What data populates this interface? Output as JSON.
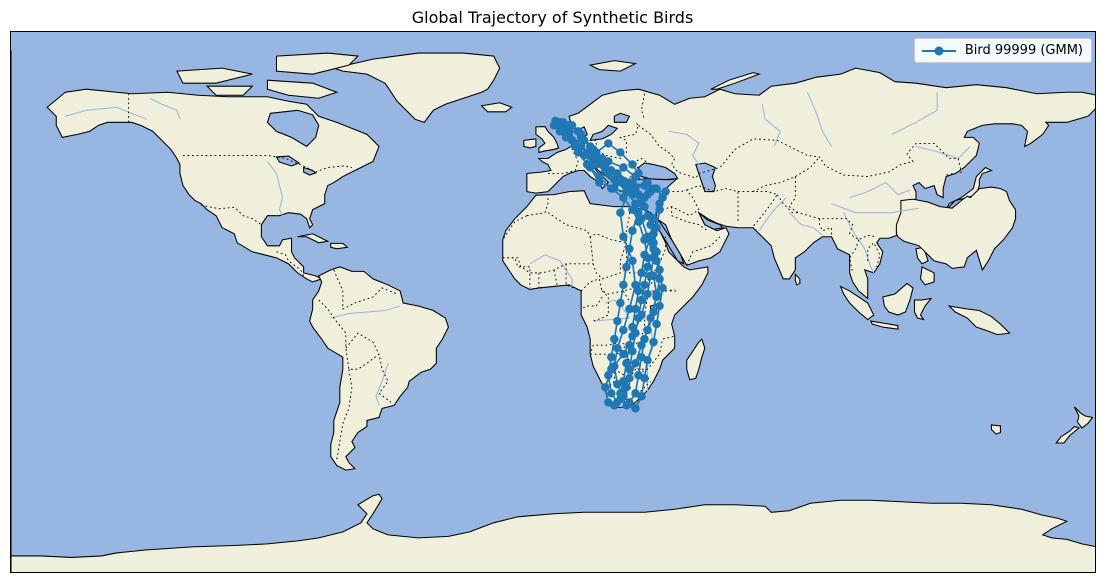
{
  "title": "Global Trajectory of Synthetic Birds",
  "legend": {
    "label": "Bird 99999 (GMM)"
  },
  "colors": {
    "ocean": "#97b6e1",
    "land": "#efefdb",
    "coastline": "#000000",
    "borders": "#000000",
    "rivers": "#97b6e1",
    "lakes": "#97b6e1",
    "track": "#1f77b4"
  },
  "map_data": {
    "projection": "PlateCarree",
    "extent": {
      "lon": [
        -180,
        180
      ],
      "lat": [
        -90,
        90
      ]
    },
    "features": [
      "ocean",
      "land",
      "coastline",
      "borders",
      "rivers",
      "lakes"
    ],
    "legend_position": "top-right"
  },
  "chart_data": {
    "type": "line",
    "title": "Global Trajectory of Synthetic Birds",
    "xlabel": "",
    "ylabel": "",
    "xlim": [
      -180,
      180
    ],
    "ylim": [
      -90,
      90
    ],
    "legend_position": "top-right",
    "series": [
      {
        "name": "Bird 99999 (GMM)",
        "marker": "circle",
        "points": [
          [
            0.5,
            60.5
          ],
          [
            3,
            58
          ],
          [
            5,
            56
          ],
          [
            8,
            52
          ],
          [
            10,
            49
          ],
          [
            13,
            47
          ],
          [
            17,
            44
          ],
          [
            21,
            42
          ],
          [
            25,
            40
          ],
          [
            30,
            39
          ],
          [
            34,
            38
          ],
          [
            36,
            35
          ],
          [
            35,
            31
          ],
          [
            34,
            25
          ],
          [
            33,
            18
          ],
          [
            31,
            12
          ],
          [
            30,
            6
          ],
          [
            29,
            1
          ],
          [
            28,
            -5
          ],
          [
            27,
            -10
          ],
          [
            26,
            -16
          ],
          [
            25,
            -22
          ],
          [
            24,
            -28
          ],
          [
            22,
            -32
          ],
          [
            20,
            -34
          ],
          [
            18,
            -33
          ],
          [
            17,
            -28
          ],
          [
            19,
            -22
          ],
          [
            23,
            -17
          ],
          [
            26,
            -11
          ],
          [
            29,
            -4
          ],
          [
            31,
            3
          ],
          [
            32,
            9
          ],
          [
            33,
            15
          ],
          [
            31,
            22
          ],
          [
            29,
            28
          ],
          [
            27,
            33
          ],
          [
            24,
            37
          ],
          [
            21,
            40
          ],
          [
            18,
            43
          ],
          [
            14,
            46
          ],
          [
            10,
            49
          ],
          [
            7,
            52
          ],
          [
            4,
            55
          ],
          [
            2,
            57
          ],
          [
            5,
            58
          ],
          [
            9,
            55
          ],
          [
            13,
            51
          ],
          [
            18,
            47
          ],
          [
            23,
            45
          ],
          [
            27,
            42
          ],
          [
            31,
            40
          ],
          [
            33,
            38
          ],
          [
            31,
            36
          ],
          [
            26,
            36
          ],
          [
            20,
            38
          ],
          [
            15,
            40
          ],
          [
            12,
            45
          ],
          [
            14,
            50
          ],
          [
            18,
            53
          ],
          [
            22,
            50
          ],
          [
            26,
            46
          ],
          [
            28,
            43
          ],
          [
            25,
            38
          ],
          [
            22,
            30
          ],
          [
            23,
            22
          ],
          [
            26,
            14
          ],
          [
            27,
            6
          ],
          [
            25,
            -2
          ],
          [
            23,
            -9
          ],
          [
            21,
            -15
          ],
          [
            20,
            -21
          ],
          [
            21,
            -27
          ],
          [
            23,
            -31
          ],
          [
            25,
            -33
          ],
          [
            27,
            -30
          ],
          [
            28,
            -24
          ],
          [
            29,
            -18
          ],
          [
            30,
            -12
          ],
          [
            32,
            -5
          ],
          [
            34,
            2
          ],
          [
            35,
            8
          ],
          [
            34,
            14
          ],
          [
            33,
            20
          ],
          [
            32,
            26
          ],
          [
            30,
            32
          ],
          [
            28,
            36
          ],
          [
            24,
            39
          ],
          [
            20,
            41
          ],
          [
            17,
            45
          ],
          [
            15,
            48
          ],
          [
            12,
            52
          ],
          [
            9,
            56
          ],
          [
            6,
            59
          ],
          [
            3,
            60
          ],
          [
            2,
            58
          ],
          [
            6,
            54
          ],
          [
            11,
            50
          ],
          [
            16,
            46
          ],
          [
            21,
            43
          ],
          [
            26,
            40
          ],
          [
            32,
            37
          ],
          [
            37,
            37
          ],
          [
            35,
            33
          ],
          [
            33,
            28
          ],
          [
            32,
            22
          ],
          [
            30,
            16
          ],
          [
            29,
            10
          ],
          [
            28,
            4
          ],
          [
            27,
            -2
          ],
          [
            26,
            -8
          ],
          [
            25,
            -14
          ],
          [
            24,
            -20
          ],
          [
            23,
            -26
          ],
          [
            22,
            -30
          ],
          [
            24,
            -34
          ],
          [
            27,
            -35
          ],
          [
            29,
            -31
          ],
          [
            30,
            -25
          ],
          [
            31,
            -19
          ],
          [
            33,
            -13
          ],
          [
            34,
            -7
          ],
          [
            35,
            -1
          ],
          [
            36,
            5
          ],
          [
            35,
            11
          ],
          [
            34,
            17
          ],
          [
            33,
            23
          ],
          [
            31,
            29
          ],
          [
            29,
            33
          ],
          [
            26,
            37
          ],
          [
            23,
            40
          ],
          [
            19,
            44
          ],
          [
            16,
            48
          ],
          [
            13,
            51
          ],
          [
            10,
            54
          ],
          [
            8,
            57
          ],
          [
            5,
            59
          ],
          [
            3,
            57
          ],
          [
            7,
            53
          ],
          [
            12,
            49
          ],
          [
            17,
            45
          ],
          [
            22,
            41
          ],
          [
            27,
            38
          ],
          [
            30,
            35
          ],
          [
            28,
            30
          ],
          [
            26,
            24
          ],
          [
            25,
            18
          ],
          [
            24,
            12
          ],
          [
            23,
            6
          ],
          [
            22,
            0
          ],
          [
            21,
            -6
          ],
          [
            20,
            -12
          ],
          [
            19,
            -18
          ],
          [
            18,
            -24
          ],
          [
            19,
            -30
          ],
          [
            21,
            -33
          ],
          [
            23,
            -30
          ],
          [
            25,
            -25
          ],
          [
            27,
            -20
          ],
          [
            29,
            -14
          ],
          [
            31,
            -9
          ],
          [
            33,
            -3
          ],
          [
            34,
            3
          ],
          [
            33,
            9
          ],
          [
            31,
            15
          ],
          [
            30,
            21
          ],
          [
            28,
            27
          ],
          [
            26,
            31
          ],
          [
            23,
            35
          ],
          [
            19,
            38
          ],
          [
            15,
            42
          ],
          [
            11,
            46
          ],
          [
            8,
            50
          ],
          [
            6,
            54
          ],
          [
            4,
            57
          ],
          [
            2,
            60
          ],
          [
            0,
            59
          ],
          [
            4,
            56
          ],
          [
            9,
            52
          ],
          [
            14,
            48
          ]
        ]
      }
    ]
  }
}
